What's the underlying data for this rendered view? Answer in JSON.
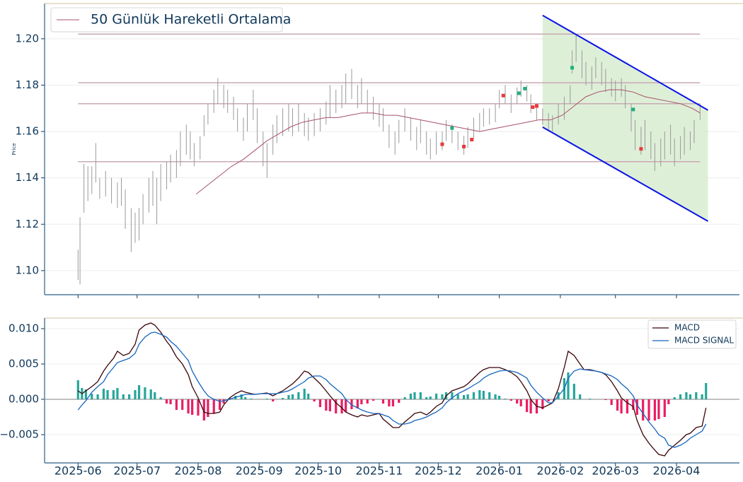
{
  "chart_data": [
    {
      "type": "ohlc",
      "y_label": "Price",
      "xlim": [
        -17,
        336
      ],
      "ylim": [
        1.0896,
        1.2152
      ],
      "yticks": [
        {
          "value": 1.1,
          "label": "1.10"
        },
        {
          "value": 1.12,
          "label": "1.12"
        },
        {
          "value": 1.14,
          "label": "1.14"
        },
        {
          "value": 1.16,
          "label": "1.16"
        },
        {
          "value": 1.18,
          "label": "1.18"
        },
        {
          "value": 1.2,
          "label": "1.20"
        }
      ],
      "grid": true,
      "legend": "upper left",
      "bars": {
        "color": "#9a9a9a",
        "x": [
          0,
          1,
          3,
          5,
          7,
          9,
          11,
          14,
          17,
          20,
          22,
          24,
          27,
          29,
          31,
          33,
          36,
          38,
          40,
          42,
          45,
          47,
          50,
          52,
          55,
          57,
          59,
          62,
          64,
          66,
          69,
          71,
          74,
          76,
          79,
          81,
          84,
          86,
          89,
          91,
          94,
          96,
          99,
          101,
          104,
          107,
          109,
          112,
          115,
          117,
          120,
          123,
          126,
          128,
          131,
          134,
          136,
          139,
          142,
          144,
          147,
          150,
          153,
          155,
          158,
          161,
          163,
          166,
          169,
          172,
          174,
          177,
          179,
          182,
          185,
          187,
          190,
          193,
          196,
          198,
          201,
          204,
          206,
          209,
          212,
          214,
          217,
          220,
          223,
          225,
          228,
          230,
          233,
          236,
          239,
          241,
          244,
          247,
          250,
          251,
          253,
          256,
          258,
          261,
          263,
          266,
          268,
          271,
          273,
          276,
          278,
          281,
          283,
          286,
          288,
          291,
          293,
          296,
          298,
          301,
          303,
          306,
          308,
          311,
          313,
          316
        ],
        "low": [
          1.096,
          1.094,
          1.125,
          1.13,
          1.133,
          1.138,
          1.131,
          1.132,
          1.129,
          1.127,
          1.128,
          1.118,
          1.108,
          1.112,
          1.113,
          1.12,
          1.125,
          1.128,
          1.12,
          1.13,
          1.135,
          1.138,
          1.14,
          1.145,
          1.15,
          1.148,
          1.145,
          1.148,
          1.158,
          1.163,
          1.168,
          1.172,
          1.17,
          1.168,
          1.165,
          1.16,
          1.156,
          1.16,
          1.165,
          1.155,
          1.145,
          1.14,
          1.15,
          1.155,
          1.158,
          1.16,
          1.158,
          1.16,
          1.158,
          1.156,
          1.158,
          1.16,
          1.163,
          1.166,
          1.168,
          1.17,
          1.172,
          1.174,
          1.17,
          1.172,
          1.168,
          1.165,
          1.162,
          1.16,
          1.153,
          1.15,
          1.155,
          1.16,
          1.156,
          1.152,
          1.155,
          1.15,
          1.148,
          1.15,
          1.152,
          1.156,
          1.155,
          1.152,
          1.15,
          1.153,
          1.157,
          1.16,
          1.162,
          1.163,
          1.164,
          1.17,
          1.172,
          1.168,
          1.172,
          1.175,
          1.173,
          1.168,
          1.165,
          1.163,
          1.16,
          1.16,
          1.163,
          1.165,
          1.172,
          1.185,
          1.19,
          1.183,
          1.18,
          1.178,
          1.183,
          1.18,
          1.177,
          1.175,
          1.173,
          1.175,
          1.17,
          1.16,
          1.152,
          1.15,
          1.152,
          1.148,
          1.143,
          1.145,
          1.148,
          1.15,
          1.145,
          1.148,
          1.15,
          1.152,
          1.155,
          1.165
        ],
        "high": [
          1.109,
          1.123,
          1.146,
          1.145,
          1.145,
          1.155,
          1.14,
          1.143,
          1.14,
          1.138,
          1.14,
          1.135,
          1.127,
          1.125,
          1.127,
          1.133,
          1.14,
          1.143,
          1.14,
          1.146,
          1.147,
          1.15,
          1.152,
          1.16,
          1.163,
          1.16,
          1.155,
          1.158,
          1.167,
          1.172,
          1.178,
          1.183,
          1.18,
          1.178,
          1.175,
          1.17,
          1.166,
          1.172,
          1.178,
          1.17,
          1.16,
          1.155,
          1.163,
          1.167,
          1.17,
          1.172,
          1.17,
          1.172,
          1.168,
          1.166,
          1.168,
          1.17,
          1.173,
          1.18,
          1.178,
          1.18,
          1.185,
          1.187,
          1.18,
          1.183,
          1.178,
          1.175,
          1.172,
          1.17,
          1.163,
          1.16,
          1.165,
          1.17,
          1.166,
          1.162,
          1.165,
          1.16,
          1.157,
          1.16,
          1.16,
          1.165,
          1.163,
          1.16,
          1.158,
          1.162,
          1.166,
          1.168,
          1.17,
          1.17,
          1.172,
          1.178,
          1.18,
          1.176,
          1.179,
          1.182,
          1.18,
          1.176,
          1.172,
          1.17,
          1.168,
          1.167,
          1.172,
          1.175,
          1.18,
          1.195,
          1.202,
          1.195,
          1.19,
          1.188,
          1.192,
          1.19,
          1.187,
          1.183,
          1.182,
          1.183,
          1.18,
          1.172,
          1.165,
          1.162,
          1.165,
          1.16,
          1.155,
          1.157,
          1.16,
          1.163,
          1.157,
          1.158,
          1.162,
          1.16,
          1.165,
          1.172
        ]
      },
      "series": [
        {
          "name": "50 Günlük Hareketli Ortalama",
          "color": "#a8506e",
          "x": [
            60,
            66,
            72,
            78,
            84,
            90,
            96,
            102,
            108,
            114,
            120,
            126,
            132,
            138,
            144,
            150,
            156,
            162,
            168,
            174,
            180,
            186,
            192,
            198,
            204,
            210,
            216,
            222,
            228,
            234,
            240,
            246,
            252,
            258,
            264,
            270,
            276,
            282,
            288,
            294,
            300,
            306,
            312,
            316
          ],
          "values": [
            1.133,
            1.137,
            1.141,
            1.145,
            1.148,
            1.152,
            1.156,
            1.159,
            1.162,
            1.164,
            1.165,
            1.166,
            1.166,
            1.167,
            1.168,
            1.168,
            1.167,
            1.167,
            1.166,
            1.165,
            1.164,
            1.163,
            1.162,
            1.161,
            1.16,
            1.161,
            1.162,
            1.163,
            1.164,
            1.165,
            1.165,
            1.167,
            1.171,
            1.175,
            1.177,
            1.178,
            1.178,
            1.177,
            1.175,
            1.174,
            1.173,
            1.172,
            1.17,
            1.168
          ]
        }
      ],
      "levels": {
        "color": "#c8a9b4",
        "values": [
          1.202,
          1.181,
          1.172,
          1.147
        ]
      },
      "channel": {
        "color": "#0a14e6",
        "fill": "#d8ecd0",
        "x": [
          236,
          320
        ],
        "upper": [
          1.2101,
          1.1692
        ],
        "lower": [
          1.1619,
          1.1213
        ]
      },
      "buy": {
        "color": "#1fb07a",
        "x": [
          190,
          224,
          227,
          251,
          282
        ],
        "values": [
          1.1615,
          1.1765,
          1.1785,
          1.1875,
          1.1695
        ]
      },
      "sell": {
        "color": "#e8393c",
        "x": [
          185,
          196,
          200,
          216,
          231,
          233,
          286
        ],
        "values": [
          1.1545,
          1.1535,
          1.1565,
          1.1755,
          1.1705,
          1.171,
          1.1525
        ]
      }
    },
    {
      "type": "macd",
      "xlim": [
        -17,
        336
      ],
      "ylim": [
        -0.009,
        0.0115
      ],
      "yticks": [
        {
          "value": -0.005,
          "label": "−0.005"
        },
        {
          "value": 0,
          "label": "0.000"
        },
        {
          "value": 0.005,
          "label": "0.005"
        },
        {
          "value": 0.01,
          "label": "0.010"
        }
      ],
      "xticks": [
        {
          "value": 0,
          "label": "2025-06"
        },
        {
          "value": 30,
          "label": "2025-07"
        },
        {
          "value": 61,
          "label": "2025-08"
        },
        {
          "value": 92,
          "label": "2025-09"
        },
        {
          "value": 122,
          "label": "2025-10"
        },
        {
          "value": 153,
          "label": "2025-11"
        },
        {
          "value": 183,
          "label": "2025-12"
        },
        {
          "value": 214,
          "label": "2026-01"
        },
        {
          "value": 245,
          "label": "2026-02"
        },
        {
          "value": 273,
          "label": "2026-03"
        },
        {
          "value": 304,
          "label": "2026-04"
        }
      ],
      "grid": true,
      "legend": "upper right",
      "x": [
        0,
        2,
        4,
        7,
        10,
        13,
        15,
        18,
        20,
        23,
        26,
        29,
        31,
        34,
        37,
        39,
        42,
        45,
        47,
        50,
        53,
        56,
        58,
        61,
        64,
        66,
        69,
        72,
        74,
        77,
        80,
        83,
        85,
        88,
        90,
        93,
        96,
        99,
        101,
        104,
        107,
        109,
        112,
        115,
        117,
        120,
        123,
        126,
        128,
        131,
        134,
        136,
        139,
        142,
        144,
        147,
        150,
        153,
        155,
        158,
        160,
        163,
        166,
        169,
        171,
        174,
        177,
        179,
        182,
        185,
        187,
        190,
        193,
        196,
        198,
        201,
        204,
        206,
        209,
        212,
        214,
        217,
        220,
        223,
        225,
        228,
        230,
        233,
        236,
        239,
        241,
        244,
        247,
        249,
        252,
        255,
        257,
        260,
        263,
        266,
        268,
        271,
        274,
        276,
        279,
        282,
        284,
        287,
        290,
        293,
        295,
        298,
        300,
        303,
        306,
        309,
        311,
        314,
        317,
        319
      ],
      "series": [
        {
          "name": "MACD",
          "color": "#3a0508",
          "values": [
            0.0012,
            0.0008,
            0.0012,
            0.0018,
            0.0025,
            0.004,
            0.0048,
            0.0058,
            0.0068,
            0.0062,
            0.0065,
            0.0078,
            0.0098,
            0.0105,
            0.0108,
            0.0105,
            0.0095,
            0.0082,
            0.0075,
            0.006,
            0.005,
            0.0035,
            0.0018,
            0.0002,
            -0.0018,
            -0.002,
            -0.002,
            -0.0018,
            -0.0008,
            0.0002,
            0.0008,
            0.0012,
            0.001,
            0.0008,
            0.0007,
            0.0008,
            0.0009,
            0.0005,
            0.0008,
            0.0012,
            0.0018,
            0.0022,
            0.003,
            0.004,
            0.0038,
            0.003,
            0.0022,
            0.0012,
            0.0005,
            -0.0005,
            -0.0012,
            -0.0018,
            -0.0022,
            -0.0025,
            -0.0022,
            -0.0024,
            -0.0022,
            -0.002,
            -0.0028,
            -0.0035,
            -0.004,
            -0.004,
            -0.0032,
            -0.0025,
            -0.002,
            -0.0018,
            -0.0022,
            -0.0018,
            -0.001,
            -0.0005,
            0.0005,
            0.0012,
            0.0015,
            0.0018,
            0.0022,
            0.003,
            0.0038,
            0.0042,
            0.0045,
            0.0045,
            0.0045,
            0.0042,
            0.0038,
            0.0032,
            0.0025,
            0.0012,
            0,
            -0.001,
            -0.0012,
            -0.0008,
            -0.0005,
            0.0015,
            0.0045,
            0.0068,
            0.0062,
            0.005,
            0.0042,
            0.0042,
            0.004,
            0.0038,
            0.0035,
            0.0025,
            0.0012,
            0.0002,
            -0.0005,
            -0.001,
            -0.003,
            -0.005,
            -0.0062,
            -0.0072,
            -0.0078,
            -0.008,
            -0.0072,
            -0.0065,
            -0.0058,
            -0.005,
            -0.0048,
            -0.004,
            -0.0038,
            -0.0012
          ]
        },
        {
          "name": "MACD SIGNAL",
          "color": "#1565c0",
          "values": [
            -0.0015,
            -0.0008,
            -0.0002,
            0.001,
            0.0018,
            0.0025,
            0.0035,
            0.0045,
            0.0052,
            0.0055,
            0.0058,
            0.0065,
            0.0078,
            0.0088,
            0.0094,
            0.0095,
            0.0092,
            0.0088,
            0.0082,
            0.0075,
            0.0065,
            0.0055,
            0.004,
            0.0025,
            0.0012,
            0.0005,
            0,
            -0.0003,
            -0.0002,
            0,
            0.0003,
            0.0005,
            0.0007,
            0.0007,
            0.0007,
            0.0008,
            0.0008,
            0.0008,
            0.0008,
            0.001,
            0.0012,
            0.0015,
            0.002,
            0.0025,
            0.003,
            0.0033,
            0.0033,
            0.0028,
            0.0022,
            0.0015,
            0.0008,
            0,
            -0.0008,
            -0.0012,
            -0.0015,
            -0.0018,
            -0.002,
            -0.002,
            -0.0022,
            -0.0025,
            -0.003,
            -0.0035,
            -0.0035,
            -0.0033,
            -0.003,
            -0.0028,
            -0.0025,
            -0.0022,
            -0.0018,
            -0.0012,
            -0.0005,
            0.0002,
            0.0008,
            0.0012,
            0.0015,
            0.002,
            0.0025,
            0.003,
            0.0035,
            0.0038,
            0.004,
            0.0041,
            0.004,
            0.0038,
            0.0035,
            0.003,
            0.002,
            0.001,
            0.0002,
            -0.0005,
            -0.0005,
            0.0005,
            0.0015,
            0.003,
            0.004,
            0.0043,
            0.0042,
            0.0041,
            0.004,
            0.0038,
            0.0036,
            0.0033,
            0.0028,
            0.0022,
            0.0015,
            0.0005,
            -0.0008,
            -0.002,
            -0.0032,
            -0.0042,
            -0.005,
            -0.0055,
            -0.0065,
            -0.0068,
            -0.0065,
            -0.006,
            -0.0055,
            -0.005,
            -0.0045,
            -0.0035
          ]
        }
      ],
      "histogram": {
        "colors": [
          "#26a69a",
          "#e91e63"
        ],
        "values": [
          0.0027,
          0.0016,
          0.0014,
          0.0008,
          0.0007,
          0.0015,
          0.0013,
          0.0013,
          0.0016,
          0.0007,
          0.0007,
          0.0013,
          0.002,
          0.0017,
          0.0014,
          0.001,
          0.0003,
          -0.0006,
          -0.0007,
          -0.0015,
          -0.0015,
          -0.002,
          -0.0022,
          -0.0023,
          -0.003,
          -0.0025,
          -0.002,
          -0.0015,
          -0.0006,
          0.0002,
          0.0005,
          0.0007,
          0.0003,
          0.0001,
          0,
          0,
          0.0001,
          -0.0003,
          0,
          0.0002,
          0.0006,
          0.0007,
          0.001,
          0.0015,
          0.0008,
          -0.0003,
          -0.0011,
          -0.0016,
          -0.0017,
          -0.002,
          -0.002,
          -0.0018,
          -0.0014,
          -0.0013,
          -0.0007,
          -0.0006,
          -0.0002,
          0,
          -0.0006,
          -0.001,
          -0.001,
          -0.0005,
          0.0003,
          0.0008,
          0.001,
          0.001,
          0.0003,
          0.0004,
          0.0008,
          0.0007,
          0.001,
          0.001,
          0.0007,
          0.0006,
          0.0007,
          0.001,
          0.0013,
          0.0012,
          0.001,
          0.0007,
          0.0005,
          0.0001,
          -0.0002,
          -0.0006,
          -0.001,
          -0.0018,
          -0.002,
          -0.002,
          -0.0014,
          -0.0003,
          0,
          0.001,
          0.003,
          0.0038,
          0.0022,
          0.0007,
          0,
          0.0001,
          0,
          0,
          -0.0001,
          -0.0008,
          -0.0016,
          -0.002,
          -0.002,
          -0.0015,
          -0.0022,
          -0.003,
          -0.003,
          -0.003,
          -0.0028,
          -0.0025,
          -0.0007,
          0.0003,
          0.0007,
          0.001,
          0.0007,
          0.001,
          0.0007,
          0.0023
        ]
      }
    }
  ]
}
